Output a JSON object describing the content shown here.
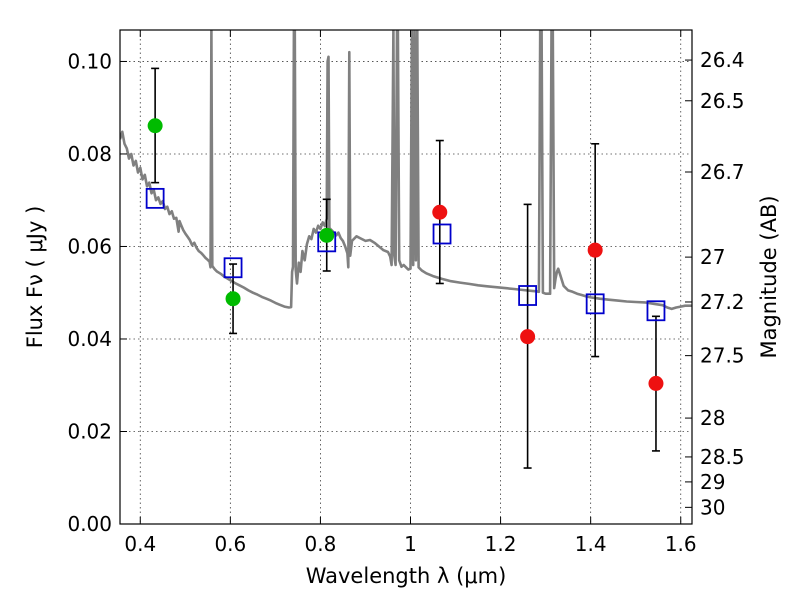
{
  "chart_data": {
    "type": "scatter",
    "xlabel": "Wavelength  λ (μm)",
    "ylabel": "Flux  Fν  ( μJy )",
    "y2label": "Magnitude (AB)",
    "xlim": [
      0.355,
      1.625
    ],
    "ylim": [
      0.0,
      0.1068
    ],
    "grid": true,
    "x_ticks": [
      "0.4",
      "0.6",
      "0.8",
      "1",
      "1.2",
      "1.4",
      "1.6"
    ],
    "x_tick_values": [
      0.4,
      0.6,
      0.8,
      1.0,
      1.2,
      1.4,
      1.6
    ],
    "y_ticks": [
      "0.00",
      "0.02",
      "0.04",
      "0.06",
      "0.08",
      "0.10"
    ],
    "y_tick_values": [
      0.0,
      0.02,
      0.04,
      0.06,
      0.08,
      0.1
    ],
    "right_ticks": [
      {
        "label": "26.4",
        "flux": 0.1003
      },
      {
        "label": "26.5",
        "flux": 0.0915
      },
      {
        "label": "26.7",
        "flux": 0.0761
      },
      {
        "label": "27",
        "flux": 0.0577
      },
      {
        "label": "27.2",
        "flux": 0.048
      },
      {
        "label": "27.5",
        "flux": 0.0364
      },
      {
        "label": "28",
        "flux": 0.0229
      },
      {
        "label": "28.5",
        "flux": 0.0145
      },
      {
        "label": "29",
        "flux": 0.0091
      },
      {
        "label": "30",
        "flux": 0.0036
      }
    ],
    "colors": {
      "green": "#00bb00",
      "red": "#ee1111",
      "model_box": "#0000cc",
      "spectrum": "#808080"
    },
    "series": [
      {
        "color": "green",
        "points": [
          {
            "x": 0.433,
            "y": 0.0861,
            "yerr_low": 0.0738,
            "yerr_high": 0.0985
          },
          {
            "x": 0.606,
            "y": 0.0487,
            "yerr_low": 0.0412,
            "yerr_high": 0.0562
          },
          {
            "x": 0.814,
            "y": 0.0624,
            "yerr_low": 0.0547,
            "yerr_high": 0.0702
          }
        ]
      },
      {
        "color": "red",
        "points": [
          {
            "x": 1.065,
            "y": 0.0674,
            "yerr_low": 0.052,
            "yerr_high": 0.0829
          },
          {
            "x": 1.26,
            "y": 0.0405,
            "yerr_low": 0.0121,
            "yerr_high": 0.0691
          },
          {
            "x": 1.41,
            "y": 0.0592,
            "yerr_low": 0.0362,
            "yerr_high": 0.0822
          },
          {
            "x": 1.545,
            "y": 0.0304,
            "yerr_low": 0.0158,
            "yerr_high": 0.0449
          }
        ]
      }
    ],
    "model_points": [
      {
        "x": 0.433,
        "y": 0.0704
      },
      {
        "x": 0.606,
        "y": 0.0554
      },
      {
        "x": 0.814,
        "y": 0.061
      },
      {
        "x": 1.07,
        "y": 0.0627
      },
      {
        "x": 1.26,
        "y": 0.0494
      },
      {
        "x": 1.41,
        "y": 0.0476
      },
      {
        "x": 1.545,
        "y": 0.0461
      }
    ],
    "spectrum": [
      [
        0.355,
        0.0832
      ],
      [
        0.36,
        0.0848
      ],
      [
        0.365,
        0.0822
      ],
      [
        0.37,
        0.0812
      ],
      [
        0.375,
        0.079
      ],
      [
        0.38,
        0.08
      ],
      [
        0.385,
        0.0775
      ],
      [
        0.39,
        0.0785
      ],
      [
        0.395,
        0.076
      ],
      [
        0.4,
        0.077
      ],
      [
        0.405,
        0.0745
      ],
      [
        0.41,
        0.0755
      ],
      [
        0.415,
        0.073
      ],
      [
        0.42,
        0.0738
      ],
      [
        0.425,
        0.0715
      ],
      [
        0.43,
        0.0722
      ],
      [
        0.435,
        0.07
      ],
      [
        0.44,
        0.0706
      ],
      [
        0.445,
        0.0692
      ],
      [
        0.45,
        0.0698
      ],
      [
        0.455,
        0.0681
      ],
      [
        0.46,
        0.0686
      ],
      [
        0.465,
        0.067
      ],
      [
        0.47,
        0.0676
      ],
      [
        0.475,
        0.066
      ],
      [
        0.48,
        0.0662
      ],
      [
        0.485,
        0.0632
      ],
      [
        0.487,
        0.0655
      ],
      [
        0.49,
        0.0648
      ],
      [
        0.495,
        0.0636
      ],
      [
        0.5,
        0.0628
      ],
      [
        0.505,
        0.0621
      ],
      [
        0.51,
        0.0614
      ],
      [
        0.515,
        0.0603
      ],
      [
        0.52,
        0.0608
      ],
      [
        0.525,
        0.0597
      ],
      [
        0.53,
        0.059
      ],
      [
        0.535,
        0.0586
      ],
      [
        0.54,
        0.0581
      ],
      [
        0.545,
        0.0575
      ],
      [
        0.55,
        0.0571
      ],
      [
        0.554,
        0.0567
      ],
      [
        0.556,
        0.0555
      ],
      [
        0.558,
        0.1068
      ],
      [
        0.56,
        0.0558
      ],
      [
        0.565,
        0.0551
      ],
      [
        0.57,
        0.0546
      ],
      [
        0.575,
        0.0543
      ],
      [
        0.58,
        0.054
      ],
      [
        0.585,
        0.0536
      ],
      [
        0.59,
        0.0533
      ],
      [
        0.595,
        0.053
      ],
      [
        0.6,
        0.0527
      ],
      [
        0.605,
        0.0524
      ],
      [
        0.61,
        0.0521
      ],
      [
        0.62,
        0.0516
      ],
      [
        0.63,
        0.0511
      ],
      [
        0.64,
        0.0505
      ],
      [
        0.65,
        0.05
      ],
      [
        0.66,
        0.0496
      ],
      [
        0.67,
        0.0491
      ],
      [
        0.68,
        0.0487
      ],
      [
        0.69,
        0.0483
      ],
      [
        0.7,
        0.0478
      ],
      [
        0.71,
        0.0474
      ],
      [
        0.72,
        0.047
      ],
      [
        0.73,
        0.0468
      ],
      [
        0.735,
        0.0469
      ],
      [
        0.737,
        0.0545
      ],
      [
        0.739,
        0.0556
      ],
      [
        0.741,
        0.1068
      ],
      [
        0.743,
        0.1068
      ],
      [
        0.745,
        0.055
      ],
      [
        0.748,
        0.052
      ],
      [
        0.752,
        0.0565
      ],
      [
        0.756,
        0.0545
      ],
      [
        0.76,
        0.059
      ],
      [
        0.765,
        0.057
      ],
      [
        0.77,
        0.0605
      ],
      [
        0.775,
        0.0622
      ],
      [
        0.78,
        0.0616
      ],
      [
        0.785,
        0.0638
      ],
      [
        0.79,
        0.063
      ],
      [
        0.795,
        0.0645
      ],
      [
        0.8,
        0.0638
      ],
      [
        0.805,
        0.0652
      ],
      [
        0.81,
        0.0644
      ],
      [
        0.814,
        0.066
      ],
      [
        0.816,
        0.1
      ],
      [
        0.818,
        0.101
      ],
      [
        0.82,
        0.064
      ],
      [
        0.825,
        0.0635
      ],
      [
        0.83,
        0.063
      ],
      [
        0.835,
        0.0624
      ],
      [
        0.84,
        0.063
      ],
      [
        0.845,
        0.0618
      ],
      [
        0.85,
        0.0612
      ],
      [
        0.855,
        0.06
      ],
      [
        0.86,
        0.0585
      ],
      [
        0.862,
        0.0555
      ],
      [
        0.864,
        0.102
      ],
      [
        0.866,
        0.058
      ],
      [
        0.87,
        0.0612
      ],
      [
        0.88,
        0.0622
      ],
      [
        0.89,
        0.0617
      ],
      [
        0.9,
        0.0612
      ],
      [
        0.91,
        0.0614
      ],
      [
        0.92,
        0.0608
      ],
      [
        0.93,
        0.06
      ],
      [
        0.94,
        0.0592
      ],
      [
        0.95,
        0.0588
      ],
      [
        0.955,
        0.0578
      ],
      [
        0.958,
        0.056
      ],
      [
        0.962,
        0.1068
      ],
      [
        0.964,
        0.058
      ],
      [
        0.967,
        0.056
      ],
      [
        0.97,
        0.1068
      ],
      [
        0.972,
        0.1068
      ],
      [
        0.975,
        0.057
      ],
      [
        0.98,
        0.0556
      ],
      [
        0.985,
        0.056
      ],
      [
        0.99,
        0.0555
      ],
      [
        0.995,
        0.055
      ],
      [
        1.0,
        0.0552
      ],
      [
        1.003,
        0.1068
      ],
      [
        1.006,
        0.056
      ],
      [
        1.009,
        0.1068
      ],
      [
        1.012,
        0.057
      ],
      [
        1.015,
        0.1068
      ],
      [
        1.018,
        0.0555
      ],
      [
        1.025,
        0.0548
      ],
      [
        1.035,
        0.0542
      ],
      [
        1.05,
        0.0536
      ],
      [
        1.07,
        0.053
      ],
      [
        1.09,
        0.0525
      ],
      [
        1.11,
        0.0522
      ],
      [
        1.13,
        0.0519
      ],
      [
        1.15,
        0.0516
      ],
      [
        1.17,
        0.0514
      ],
      [
        1.19,
        0.0512
      ],
      [
        1.21,
        0.051
      ],
      [
        1.23,
        0.0508
      ],
      [
        1.25,
        0.0506
      ],
      [
        1.27,
        0.0504
      ],
      [
        1.28,
        0.0503
      ],
      [
        1.285,
        0.0502
      ],
      [
        1.288,
        0.1068
      ],
      [
        1.291,
        0.1068
      ],
      [
        1.294,
        0.05
      ],
      [
        1.3,
        0.0498
      ],
      [
        1.31,
        0.0498
      ],
      [
        1.313,
        0.1068
      ],
      [
        1.316,
        0.1068
      ],
      [
        1.319,
        0.051
      ],
      [
        1.322,
        0.053
      ],
      [
        1.325,
        0.0545
      ],
      [
        1.328,
        0.0552
      ],
      [
        1.332,
        0.054
      ],
      [
        1.34,
        0.0515
      ],
      [
        1.35,
        0.0505
      ],
      [
        1.36,
        0.0502
      ],
      [
        1.37,
        0.0498
      ],
      [
        1.38,
        0.0495
      ],
      [
        1.39,
        0.0492
      ],
      [
        1.4,
        0.049
      ],
      [
        1.42,
        0.0487
      ],
      [
        1.44,
        0.0485
      ],
      [
        1.46,
        0.0483
      ],
      [
        1.48,
        0.0481
      ],
      [
        1.5,
        0.048
      ],
      [
        1.52,
        0.0479
      ],
      [
        1.54,
        0.0476
      ],
      [
        1.56,
        0.0473
      ],
      [
        1.57,
        0.0468
      ],
      [
        1.58,
        0.0465
      ],
      [
        1.59,
        0.0468
      ],
      [
        1.6,
        0.047
      ],
      [
        1.61,
        0.0472
      ],
      [
        1.625,
        0.0472
      ]
    ]
  }
}
